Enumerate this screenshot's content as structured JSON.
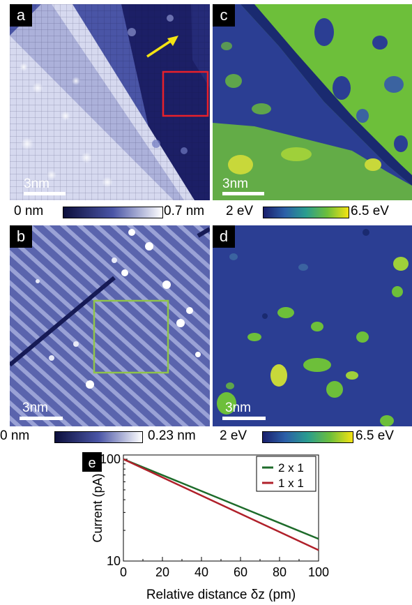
{
  "panels": {
    "a": {
      "label": "a",
      "scalebar": "3nm"
    },
    "b": {
      "label": "b",
      "scalebar": "3nm"
    },
    "c": {
      "label": "c",
      "scalebar": "3nm"
    },
    "d": {
      "label": "d",
      "scalebar": "3nm"
    },
    "e": {
      "label": "e"
    }
  },
  "colorbars": {
    "a": {
      "min": "0 nm",
      "max": "0.7 nm",
      "scheme": "blue-white"
    },
    "b": {
      "min": "0 nm",
      "max": "0.23 nm",
      "scheme": "blue-white"
    },
    "c": {
      "min": "2 eV",
      "max": "6.5 eV",
      "scheme": "viridis"
    },
    "d": {
      "min": "2 eV",
      "max": "6.5 eV",
      "scheme": "viridis"
    }
  },
  "colors": {
    "stm_dark": "#1c1f66",
    "stm_mid": "#4a55a6",
    "stm_light": "#e8eaf8",
    "map_blue": "#2b3e93",
    "map_green": "#6dbf3a",
    "map_yellow": "#e8e11d",
    "box_red": "#e8202a",
    "box_green": "#8fc44a",
    "arrow_yellow": "#f4e313",
    "series_2x1": "#1d6b2a",
    "series_1x1": "#b0202a"
  },
  "chart_data": {
    "type": "line",
    "xlabel": "Relative distance δz (pm)",
    "ylabel": "Current (pA)",
    "xlim": [
      0,
      100
    ],
    "ylim": [
      10,
      100
    ],
    "y_scale": "log",
    "x_ticks": [
      "0",
      "20",
      "40",
      "60",
      "80",
      "100"
    ],
    "y_ticks": [
      "10",
      "100"
    ],
    "legend_position": "top-right",
    "series": [
      {
        "name": "2 x 1",
        "color": "#1d6b2a",
        "x": [
          0,
          100
        ],
        "y": [
          100,
          16.5
        ]
      },
      {
        "name": "1 x 1",
        "color": "#b0202a",
        "x": [
          0,
          100
        ],
        "y": [
          100,
          12.8
        ]
      }
    ]
  }
}
